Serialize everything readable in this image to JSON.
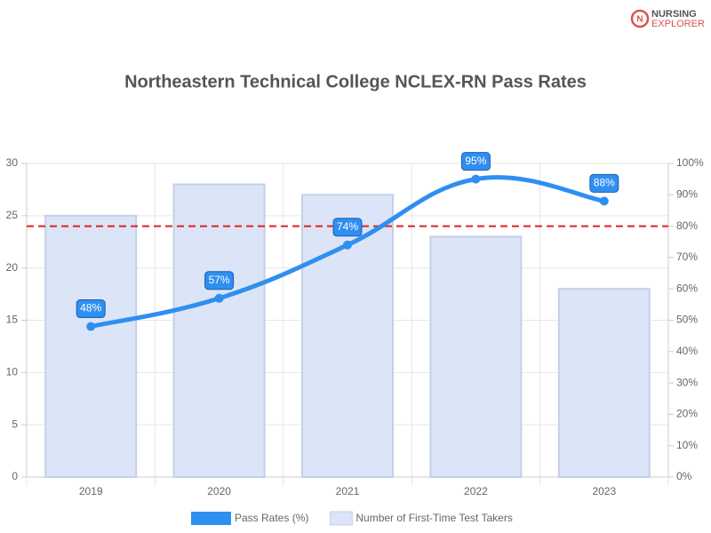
{
  "brand": {
    "line1": "NURSING",
    "line2": "EXPLORER"
  },
  "chart_data": {
    "type": "bar-line",
    "title": "Northeastern Technical College NCLEX-RN Pass Rates",
    "categories": [
      "2019",
      "2020",
      "2021",
      "2022",
      "2023"
    ],
    "series": [
      {
        "name": "Pass Rates (%)",
        "type": "line",
        "axis": "y2",
        "color": "#2f8ff0",
        "values": [
          48,
          57,
          74,
          95,
          88
        ],
        "value_labels": [
          "48%",
          "57%",
          "74%",
          "95%",
          "88%"
        ]
      },
      {
        "name": "Number of First-Time Test Takers",
        "type": "bar",
        "axis": "y",
        "color": "#dce4f7",
        "values": [
          25,
          28,
          27,
          23,
          18
        ]
      }
    ],
    "ylim": [
      0,
      30
    ],
    "yticks": [
      0,
      5,
      10,
      15,
      20,
      25,
      30
    ],
    "y2lim": [
      0,
      100
    ],
    "y2ticks": [
      {
        "value": 0,
        "label": "0%"
      },
      {
        "value": 10,
        "label": "10%"
      },
      {
        "value": 20,
        "label": "20%"
      },
      {
        "value": 30,
        "label": "30%"
      },
      {
        "value": 40,
        "label": "40%"
      },
      {
        "value": 50,
        "label": "50%"
      },
      {
        "value": 60,
        "label": "60%"
      },
      {
        "value": 70,
        "label": "70%"
      },
      {
        "value": 80,
        "label": "80%"
      },
      {
        "value": 90,
        "label": "90%"
      },
      {
        "value": 100,
        "label": "100%"
      }
    ],
    "reference_line": {
      "value": 80,
      "axis": "y2",
      "color": "#e02020"
    },
    "grid": true,
    "legend": "bottom"
  }
}
